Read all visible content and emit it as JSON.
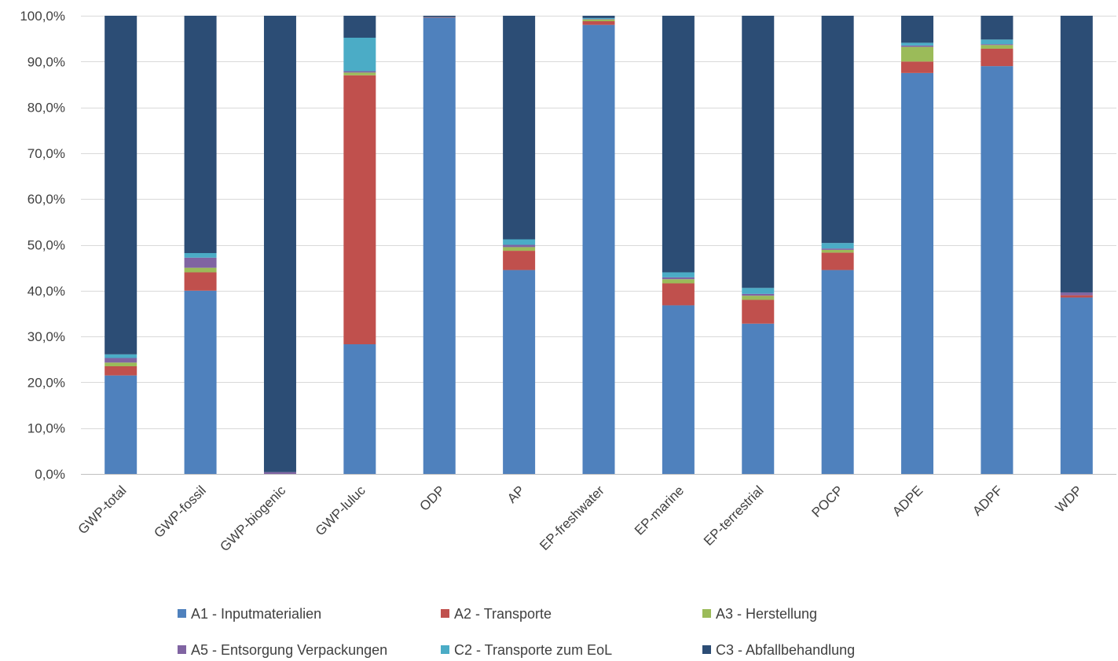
{
  "chart_data": {
    "type": "bar",
    "stacked": true,
    "percent": true,
    "categories": [
      "GWP-total",
      "GWP-fossil",
      "GWP-biogenic",
      "GWP-luluc",
      "ODP",
      "AP",
      "EP-freshwater",
      "EP-marine",
      "EP-terrestrial",
      "POCP",
      "ADPE",
      "ADPF",
      "WDP"
    ],
    "ylim": [
      0,
      100
    ],
    "yticks": [
      0,
      10,
      20,
      30,
      40,
      50,
      60,
      70,
      80,
      90,
      100
    ],
    "ytick_labels": [
      "0,0%",
      "10,0%",
      "20,0%",
      "30,0%",
      "40,0%",
      "50,0%",
      "60,0%",
      "70,0%",
      "80,0%",
      "90,0%",
      "100,0%"
    ],
    "grid": true,
    "legend_position": "bottom",
    "series": [
      {
        "name": "A1 - Inputmaterialien",
        "color": "#4F81BD",
        "values": [
          21.5,
          40.0,
          0.0,
          28.3,
          99.6,
          44.5,
          98.0,
          36.8,
          32.8,
          44.5,
          87.5,
          89.0,
          38.5
        ]
      },
      {
        "name": "A2 - Transporte",
        "color": "#C0504D",
        "values": [
          2.0,
          4.0,
          0.0,
          58.7,
          0.1,
          4.2,
          0.8,
          4.8,
          5.2,
          3.8,
          2.5,
          3.8,
          0.5
        ]
      },
      {
        "name": "A3 - Herstellung",
        "color": "#9BBB59",
        "values": [
          0.8,
          1.0,
          0.0,
          0.6,
          0.0,
          0.8,
          0.4,
          0.9,
          0.9,
          0.6,
          3.2,
          0.8,
          0.0
        ]
      },
      {
        "name": "A5 - Entsorgung Verpackungen",
        "color": "#8064A2",
        "values": [
          1.0,
          2.2,
          0.4,
          0.3,
          0.0,
          0.5,
          0.1,
          0.4,
          0.4,
          0.3,
          0.3,
          0.2,
          0.6
        ]
      },
      {
        "name": "C2 - Transporte zum EoL",
        "color": "#4BACC6",
        "values": [
          0.8,
          1.0,
          0.0,
          7.3,
          0.0,
          1.2,
          0.2,
          1.1,
          1.3,
          1.2,
          0.6,
          1.0,
          0.0
        ]
      },
      {
        "name": "C3 - Abfallbehandlung",
        "color": "#2C4D75",
        "values": [
          73.9,
          51.8,
          99.6,
          4.8,
          0.3,
          48.8,
          0.5,
          56.0,
          59.4,
          49.6,
          5.9,
          5.2,
          60.4
        ]
      }
    ]
  }
}
